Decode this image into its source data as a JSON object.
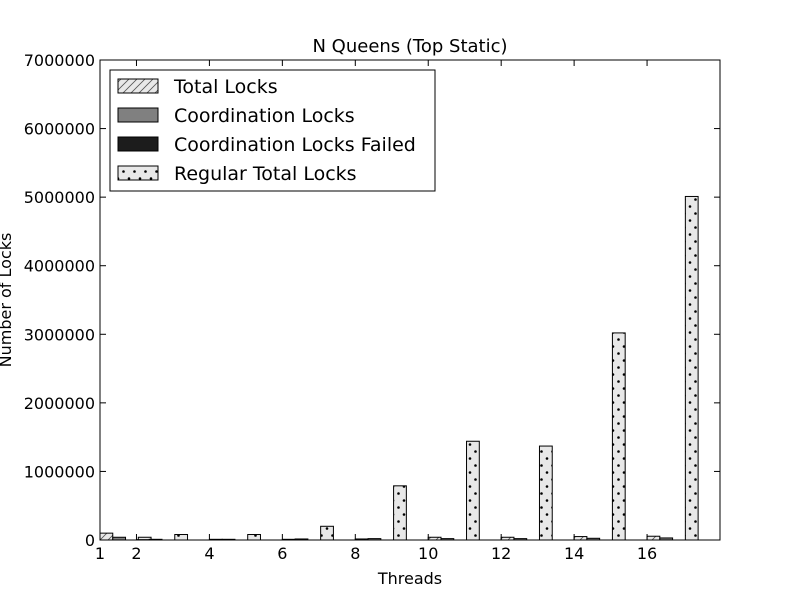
{
  "chart_data": {
    "type": "bar",
    "title": "N Queens (Top Static)",
    "xlabel": "Threads",
    "ylabel": "Number of Locks",
    "x_ticks": [
      1,
      2,
      4,
      6,
      8,
      10,
      12,
      14,
      16
    ],
    "y_ticks": [
      0,
      1000000,
      2000000,
      3000000,
      4000000,
      5000000,
      6000000,
      7000000
    ],
    "y_tick_labels": [
      "0",
      "1000000",
      "2000000",
      "3000000",
      "4000000",
      "5000000",
      "6000000",
      "7000000"
    ],
    "ylim": [
      0,
      7000000
    ],
    "xlim": [
      1,
      18
    ],
    "legend_position": "top-left",
    "grid": false,
    "categories": [
      1,
      2,
      4,
      6,
      8,
      10,
      12,
      14,
      16
    ],
    "series": [
      {
        "name": "Total Locks",
        "hatch": "diagonal",
        "color": "#e8e8e8",
        "values": [
          100000,
          5000,
          10000,
          10000,
          15000,
          40000,
          40000,
          50000,
          55000
        ]
      },
      {
        "name": "Coordination Locks",
        "hatch": "none",
        "color": "#808080",
        "values": [
          40000,
          10000,
          10000,
          15000,
          20000,
          20000,
          20000,
          25000,
          30000
        ]
      },
      {
        "name": "Coordination Locks Failed",
        "hatch": "none",
        "color": "#1c1c1c",
        "values": [
          0,
          0,
          0,
          0,
          0,
          0,
          0,
          0,
          0
        ]
      },
      {
        "name": "Regular Total Locks",
        "hatch": "dots",
        "color": "#e8e8e8",
        "values": [
          40000,
          80000,
          80000,
          200000,
          790000,
          1440000,
          1370000,
          3020000,
          5010000
        ]
      }
    ]
  }
}
